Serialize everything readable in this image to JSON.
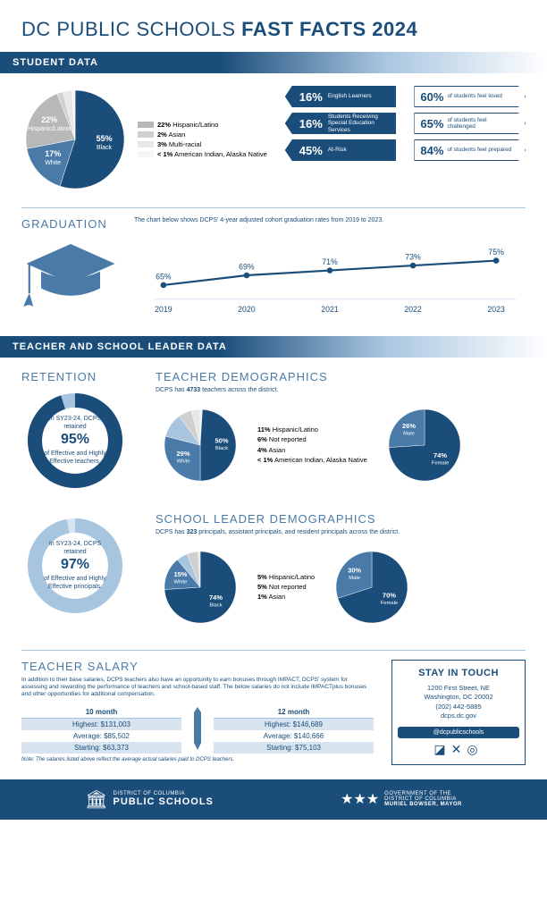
{
  "title_prefix": "DC PUBLIC SCHOOLS ",
  "title_bold": "FAST FACTS 2024",
  "sections": {
    "student": "STUDENT DATA",
    "teacher": "TEACHER AND SCHOOL LEADER DATA"
  },
  "colors": {
    "dark": "#1a4d7a",
    "mid": "#4a7ba8",
    "light": "#a8c5e0",
    "pale": "#d8e4f0",
    "grey1": "#b8b8b8",
    "grey2": "#d0d0d0",
    "grey3": "#e8e8e8",
    "white": "#ffffff"
  },
  "student_pie": {
    "type": "pie",
    "slices": [
      {
        "label": "Black",
        "value": 55,
        "color": "#1a4d7a",
        "label_color": "#ffffff"
      },
      {
        "label": "White",
        "value": 17,
        "color": "#4a7ba8",
        "label_color": "#ffffff"
      },
      {
        "label": "Hispanic/Latino",
        "value": 22,
        "color": "#b8b8b8"
      },
      {
        "label": "Asian",
        "value": 2,
        "color": "#d0d0d0"
      },
      {
        "label": "Multi-racial",
        "value": 3,
        "color": "#e8e8e8"
      },
      {
        "label": "American Indian, Alaska Native",
        "value": 1,
        "prefix": "< ",
        "color": "#f5f5f5"
      }
    ]
  },
  "student_stats_left": [
    {
      "pct": "16%",
      "txt": "English Learners"
    },
    {
      "pct": "16%",
      "txt": "Students Receiving Special Education Services"
    },
    {
      "pct": "45%",
      "txt": "At-Risk"
    }
  ],
  "student_stats_right": [
    {
      "pct": "60%",
      "txt": "of students feel loved"
    },
    {
      "pct": "65%",
      "txt": "of students feel challenged"
    },
    {
      "pct": "84%",
      "txt": "of students feel prepared"
    }
  ],
  "graduation": {
    "heading": "GRADUATION",
    "desc": "The chart below shows DCPS' 4-year adjusted cohort graduation rates from 2019 to 2023.",
    "type": "line",
    "years": [
      "2019",
      "2020",
      "2021",
      "2022",
      "2023"
    ],
    "values": [
      65,
      69,
      71,
      73,
      75
    ],
    "line_color": "#1a4d7a",
    "marker_color": "#1a4d7a",
    "label_fontsize": 8,
    "ylim": [
      60,
      80
    ]
  },
  "retention": {
    "heading": "RETENTION",
    "donuts": [
      {
        "pre": "In SY23-24, DCPS retained",
        "pct": "95%",
        "post": "of Effective and Highly Effective teachers.",
        "value": 95,
        "fg": "#1a4d7a",
        "bg": "#a8c5e0"
      },
      {
        "pre": "In SY23-24, DCPS retained",
        "pct": "97%",
        "post": "of Effective and Highly Effective principals.",
        "value": 97,
        "fg": "#a8c5e0",
        "bg": "#d8e4f0"
      }
    ]
  },
  "teacher_demo": {
    "heading": "TEACHER DEMOGRAPHICS",
    "sub_pre": "DCPS has ",
    "count": "4733",
    "sub_post": " teachers across the district.",
    "race_pie": {
      "slices": [
        {
          "label": "Black",
          "value": 50,
          "color": "#1a4d7a"
        },
        {
          "label": "White",
          "value": 29,
          "color": "#4a7ba8"
        },
        {
          "label": "Hispanic/Latino",
          "value": 11,
          "color": "#a8c5e0"
        },
        {
          "label": "Not reported",
          "value": 6,
          "color": "#d0d0d0"
        },
        {
          "label": "Asian",
          "value": 4,
          "color": "#e8e8e8"
        },
        {
          "label": "American Indian, Alaska Native",
          "value": 1,
          "prefix": "< ",
          "color": "#f5f5f5"
        }
      ]
    },
    "gender_pie": {
      "slices": [
        {
          "label": "Female",
          "value": 74,
          "color": "#1a4d7a"
        },
        {
          "label": "Male",
          "value": 26,
          "color": "#4a7ba8"
        }
      ]
    }
  },
  "leader_demo": {
    "heading": "SCHOOL LEADER DEMOGRAPHICS",
    "sub_pre": "DCPS has ",
    "count": "323",
    "sub_post": " principals, assistant principals, and resident principals across the district.",
    "race_pie": {
      "slices": [
        {
          "label": "Black",
          "value": 74,
          "color": "#1a4d7a"
        },
        {
          "label": "White",
          "value": 15,
          "color": "#4a7ba8"
        },
        {
          "label": "Hispanic/Latino",
          "value": 5,
          "color": "#a8c5e0"
        },
        {
          "label": "Not reported",
          "value": 5,
          "color": "#d0d0d0"
        },
        {
          "label": "Asian",
          "value": 1,
          "color": "#e8e8e8"
        }
      ]
    },
    "gender_pie": {
      "slices": [
        {
          "label": "Female",
          "value": 70,
          "color": "#1a4d7a"
        },
        {
          "label": "Male",
          "value": 30,
          "color": "#4a7ba8"
        }
      ]
    }
  },
  "salary": {
    "heading": "TEACHER SALARY",
    "desc": "In addition to their base salaries, DCPS teachers also have an opportunity to earn bonuses through IMPACT, DCPS' system for assessing and rewarding the performance of teachers and school-based staff. The below salaries do not include IMPACTplus bonuses and other opportunities for additional compensation.",
    "tables": [
      {
        "hdr": "10 month",
        "rows": [
          "Highest: $131,003",
          "Average: $85,502",
          "Starting: $63,373"
        ]
      },
      {
        "hdr": "12 month",
        "rows": [
          "Highest: $146,689",
          "Average: $140,666",
          "Starting: $75,103"
        ]
      }
    ],
    "note": "Note: The salaries listed above reflect the average actual salaries paid to DCPS teachers."
  },
  "contact": {
    "heading": "STAY IN TOUCH",
    "addr1": "1200 First Street, NE",
    "addr2": "Washington, DC 20002",
    "phone": "(202) 442-5885",
    "web": "dcps.dc.gov",
    "handle": "@dcpublicschools"
  },
  "footer": {
    "l1a": "DISTRICT OF COLUMBIA",
    "l1b": "PUBLIC SCHOOLS",
    "r1": "GOVERNMENT OF THE",
    "r2": "DISTRICT OF COLUMBIA",
    "r3": "MURIEL BOWSER, MAYOR"
  }
}
